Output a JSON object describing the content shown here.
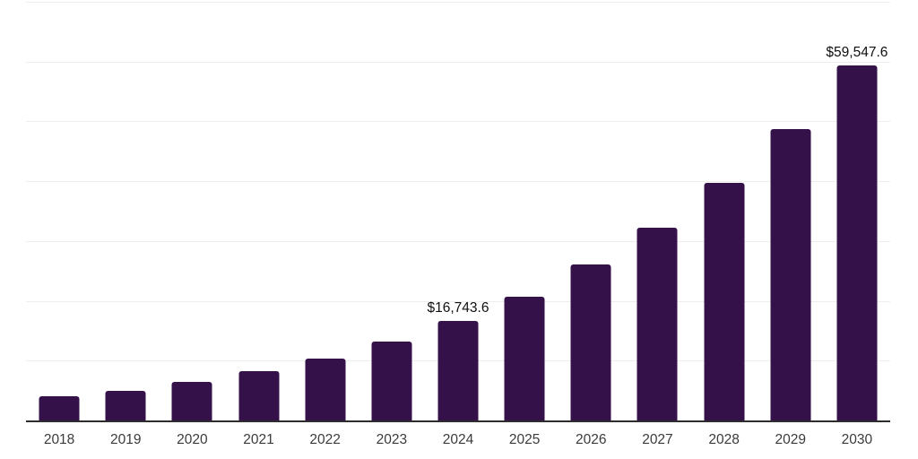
{
  "chart_data": {
    "type": "bar",
    "title": "",
    "xlabel": "",
    "ylabel": "",
    "categories": [
      "2018",
      "2019",
      "2020",
      "2021",
      "2022",
      "2023",
      "2024",
      "2025",
      "2026",
      "2027",
      "2028",
      "2029",
      "2030"
    ],
    "values": [
      4250,
      5050,
      6650,
      8350,
      10500,
      13350,
      16743.6,
      20900,
      26200,
      32400,
      39900,
      48900,
      59547.6
    ],
    "data_labels": [
      "",
      "",
      "",
      "",
      "",
      "",
      "$16,743.6",
      "",
      "",
      "",
      "",
      "",
      "$59,547.6"
    ],
    "ylim": [
      0,
      70000
    ],
    "gridline_interval": 10000,
    "grid": "horizontal",
    "legend": "none",
    "colors": {
      "bar": "#35114a",
      "gridline": "#eeeeee",
      "axis_line": "#2d2d2d",
      "tick_label": "#3b3b3b",
      "value_label": "#101010",
      "background": "#ffffff"
    }
  }
}
